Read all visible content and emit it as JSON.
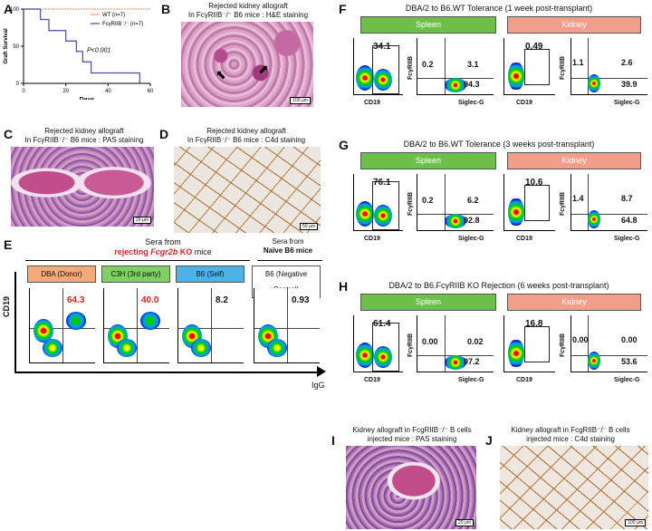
{
  "panels": {
    "A": {
      "label": "A",
      "chart_data": {
        "type": "line",
        "title": "",
        "xlabel": "Days",
        "ylabel": "Graft Survival",
        "xlim": [
          0,
          60
        ],
        "ylim": [
          0,
          100
        ],
        "xticks": [
          "0",
          "20",
          "40",
          "60"
        ],
        "yticks": [
          "0",
          "50",
          "100"
        ],
        "series": [
          {
            "name": "WT (n=7)",
            "color": "#f0a070",
            "x": [
              0,
              60
            ],
            "y": [
              100,
              100
            ]
          },
          {
            "name": "FcγRIIB⁻/⁻ (n=7)",
            "color": "#4a4aa8",
            "x": [
              0,
              8,
              8,
              12,
              12,
              20,
              20,
              25,
              25,
              28,
              28,
              32,
              32,
              55,
              55
            ],
            "y": [
              100,
              100,
              86,
              86,
              71,
              71,
              57,
              57,
              43,
              43,
              29,
              29,
              14,
              14,
              0
            ]
          }
        ],
        "annotation": "P<0.001"
      }
    },
    "B": {
      "label": "B",
      "caption1": "Rejected kidney allograft",
      "caption2": "In FcγRIIB⁻/⁻ B6 mice : H&E staining",
      "scale": "100 μm"
    },
    "C": {
      "label": "C",
      "caption1": "Rejected kidney allograft",
      "caption2": "In FcγRIIB⁻/⁻ B6 mice : PAS staining",
      "scale": "20 μm"
    },
    "D": {
      "label": "D",
      "caption1": "Rejected kidney allograft",
      "caption2": "In FcγRIIB⁻/⁻ B6 mice : C4d staining",
      "scale": "50 μm"
    },
    "E": {
      "label": "E",
      "header1": "Sera from",
      "header2_a": "rejecting ",
      "header2_b": "Fcgr2b",
      "header2_c": " KO",
      "header2_d": " mice",
      "header3": "Sera from",
      "header4": "Naïve B6 mice",
      "yaxis": "CD19",
      "xaxis": "IgG",
      "plots": [
        {
          "tag": "DBA (Donor)",
          "value": "64.3",
          "color": "#f4a97a"
        },
        {
          "tag": "C3H (3rd party)",
          "value": "40.0",
          "color": "#7fcf66"
        },
        {
          "tag": "B6 (Self)",
          "value": "8.2",
          "color": "#4db3e6"
        },
        {
          "tag": "B6 (Negative Control)",
          "value": "0.93",
          "color": "#ffffff"
        }
      ]
    },
    "F": {
      "label": "F",
      "title": "DBA/2 to B6.WT  Tolerance (1 week post-transplant)",
      "spleen": "Spleen",
      "kidney": "Kidney",
      "gate_spleen": "34.1",
      "gate_kidney": "0.49",
      "spleen_q": {
        "ul": "0.2",
        "ur": "3.1",
        "lr": "94.3"
      },
      "kidney_q": {
        "ul": "1.1",
        "ur": "2.6",
        "lr": "39.9"
      }
    },
    "G": {
      "label": "G",
      "title": "DBA/2 to B6.WT  Tolerance (3 weeks post-transplant)",
      "spleen": "Spleen",
      "kidney": "Kidney",
      "gate_spleen": "76.1",
      "gate_kidney": "10.6",
      "spleen_q": {
        "ul": "0.2",
        "ur": "6.2",
        "lr": "92.8"
      },
      "kidney_q": {
        "ul": "1.4",
        "ur": "8.7",
        "lr": "64.8"
      }
    },
    "H": {
      "label": "H",
      "title": "DBA/2 to B6.FcγRIIB KO  Rejection (6 weeks post-transplant)",
      "spleen": "Spleen",
      "kidney": "Kidney",
      "gate_spleen": "61.4",
      "gate_kidney": "16.8",
      "spleen_q": {
        "ul": "0.00",
        "ur": "0.02",
        "lr": "97.2"
      },
      "kidney_q": {
        "ul": "0.00",
        "ur": "0.00",
        "lr": "53.6"
      }
    },
    "I": {
      "label": "I",
      "caption1": "Kidney allograft in FcgRIIB⁻/⁻ B cells",
      "caption2": "injected mice : PAS staining",
      "scale": "20 μm"
    },
    "J": {
      "label": "J",
      "caption1": "Kidney allograft in FcgRIIB⁻/⁻ B cells",
      "caption2": "injected mice : C4d staining",
      "scale": "100 μm"
    },
    "flow_axes": {
      "cd19": "CD19",
      "fcgr": "FcγRIIB",
      "siglec": "Siglec-G"
    }
  }
}
